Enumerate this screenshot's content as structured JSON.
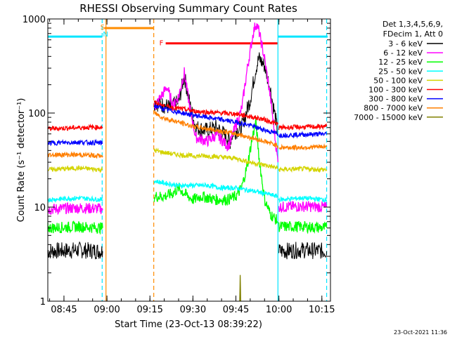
{
  "chart_data": {
    "type": "line",
    "title": "RHESSI Observing Summary Count Rates",
    "xlabel": "Start Time (23-Oct-13 08:39:22)",
    "ylabel": "Count Rate (s⁻¹ detector⁻¹)",
    "y_scale": "log",
    "ylim": [
      1,
      1000
    ],
    "xlim": [
      "08:39:22",
      "10:18:00"
    ],
    "x_ticks": [
      "08:45",
      "09:00",
      "09:15",
      "09:30",
      "09:45",
      "10:00",
      "10:15"
    ],
    "y_ticks": [
      "1",
      "10",
      "100",
      "1000"
    ],
    "grid": false,
    "legend_position": "right",
    "legend_header": [
      "Det 1,3,4,5,6,9,",
      "FDecim 1, Att 0"
    ],
    "timestamp": "23-Oct-2021 11:36",
    "annotations": [
      {
        "text": "S",
        "color": "#ff8c00",
        "time": "08:58:30"
      },
      {
        "text": "N",
        "color": "#00e5ff",
        "time": "08:59:30"
      },
      {
        "text": "F",
        "color": "#ff0000",
        "time": "09:19:00"
      }
    ],
    "bars": [
      {
        "name": "saa",
        "color": "#ff8c00",
        "from": "08:59:10",
        "to": "09:16:20",
        "y": 800
      },
      {
        "name": "night-left",
        "color": "#00e5ff",
        "from": "08:39:22",
        "to": "08:58:20",
        "y": 650
      },
      {
        "name": "night-right",
        "color": "#00e5ff",
        "from": "09:59:40",
        "to": "10:17:00",
        "y": 650
      },
      {
        "name": "flare",
        "color": "#ff0000",
        "from": "09:20:30",
        "to": "09:59:30",
        "y": 550
      }
    ],
    "vertical_lines": [
      {
        "time": "08:58:20",
        "color": "#00e5ff",
        "style": "dashed"
      },
      {
        "time": "08:59:40",
        "color": "#ff8c00",
        "style": "solid"
      },
      {
        "time": "09:16:20",
        "color": "#ff8c00",
        "style": "dashed"
      },
      {
        "time": "09:59:40",
        "color": "#00e5ff",
        "style": "solid"
      },
      {
        "time": "10:16:40",
        "color": "#00e5ff",
        "style": "dashed"
      }
    ],
    "series": [
      {
        "name": "3 - 6 keV",
        "color": "#000000",
        "segments": [
          [
            [
              "08:39:22",
              3.4
            ],
            [
              "08:50",
              3.5
            ],
            [
              "08:58:30",
              3.4
            ]
          ],
          [
            [
              "09:16:30",
              130
            ],
            [
              "09:22",
              115
            ],
            [
              "09:25",
              130
            ],
            [
              "09:27",
              250
            ],
            [
              "09:29",
              120
            ],
            [
              "09:31",
              70
            ],
            [
              "09:35",
              65
            ],
            [
              "09:38",
              70
            ],
            [
              "09:40",
              63
            ],
            [
              "09:42",
              55
            ],
            [
              "09:43",
              50
            ],
            [
              "09:44",
              62
            ],
            [
              "09:47",
              70
            ],
            [
              "09:50",
              140
            ],
            [
              "09:52",
              300
            ],
            [
              "09:53",
              380
            ],
            [
              "09:55",
              320
            ],
            [
              "09:57",
              180
            ],
            [
              "09:58:30",
              100
            ],
            [
              "09:59:40",
              60
            ]
          ],
          [
            [
              "10:00",
              3.4
            ],
            [
              "10:08",
              3.5
            ],
            [
              "10:16:40",
              3.4
            ]
          ]
        ]
      },
      {
        "name": "6 - 12 keV",
        "color": "#ff00ff",
        "segments": [
          [
            [
              "08:39:22",
              9.5
            ],
            [
              "08:50",
              9.8
            ],
            [
              "08:58:30",
              9.6
            ]
          ],
          [
            [
              "09:16:30",
              115
            ],
            [
              "09:21",
              190
            ],
            [
              "09:23",
              120
            ],
            [
              "09:25",
              150
            ],
            [
              "09:27",
              270
            ],
            [
              "09:29",
              110
            ],
            [
              "09:31",
              55
            ],
            [
              "09:35",
              50
            ],
            [
              "09:38",
              58
            ],
            [
              "09:40",
              52
            ],
            [
              "09:42",
              45
            ],
            [
              "09:43",
              48
            ],
            [
              "09:44",
              60
            ],
            [
              "09:47",
              110
            ],
            [
              "09:49",
              300
            ],
            [
              "09:51",
              700
            ],
            [
              "09:52",
              900
            ],
            [
              "09:53",
              750
            ],
            [
              "09:55",
              380
            ],
            [
              "09:57",
              150
            ],
            [
              "09:58:30",
              60
            ],
            [
              "09:59:40",
              30
            ]
          ],
          [
            [
              "10:00",
              10
            ],
            [
              "10:08",
              10.2
            ],
            [
              "10:16:40",
              10
            ]
          ]
        ]
      },
      {
        "name": "12 - 25 keV",
        "color": "#00ff00",
        "segments": [
          [
            [
              "08:39:22",
              6.0
            ],
            [
              "08:50",
              6.2
            ],
            [
              "08:58:30",
              6.0
            ]
          ],
          [
            [
              "09:16:30",
              13
            ],
            [
              "09:20",
              13
            ],
            [
              "09:23",
              14
            ],
            [
              "09:25",
              16
            ],
            [
              "09:27",
              14
            ],
            [
              "09:30",
              12
            ],
            [
              "09:33",
              13
            ],
            [
              "09:38",
              12
            ],
            [
              "09:42",
              12
            ],
            [
              "09:45",
              13
            ],
            [
              "09:47",
              16
            ],
            [
              "09:49",
              28
            ],
            [
              "09:51",
              60
            ],
            [
              "09:52",
              80
            ],
            [
              "09:53",
              35
            ],
            [
              "09:55",
              12
            ],
            [
              "09:57",
              8.5
            ],
            [
              "09:59:40",
              7
            ]
          ],
          [
            [
              "10:00",
              6.2
            ],
            [
              "10:08",
              6.2
            ],
            [
              "10:16:40",
              6.0
            ]
          ]
        ]
      },
      {
        "name": "25 - 50 keV",
        "color": "#00ffff",
        "segments": [
          [
            [
              "08:39:22",
              12
            ],
            [
              "08:50",
              12.5
            ],
            [
              "08:58:30",
              12
            ]
          ],
          [
            [
              "09:16:30",
              19
            ],
            [
              "09:20",
              18
            ],
            [
              "09:25",
              17
            ],
            [
              "09:30",
              17
            ],
            [
              "09:35",
              17
            ],
            [
              "09:40",
              16
            ],
            [
              "09:45",
              16
            ],
            [
              "09:50",
              15
            ],
            [
              "09:55",
              14
            ],
            [
              "09:59:40",
              13
            ]
          ],
          [
            [
              "10:00",
              12
            ],
            [
              "10:08",
              12.5
            ],
            [
              "10:16:40",
              12
            ]
          ]
        ]
      },
      {
        "name": "50 - 100 keV",
        "color": "#d4d400",
        "segments": [
          [
            [
              "08:39:22",
              25
            ],
            [
              "08:50",
              26
            ],
            [
              "08:58:30",
              25
            ]
          ],
          [
            [
              "09:16:30",
              40
            ],
            [
              "09:20",
              38
            ],
            [
              "09:25",
              36
            ],
            [
              "09:30",
              35
            ],
            [
              "09:35",
              35
            ],
            [
              "09:40",
              34
            ],
            [
              "09:45",
              33
            ],
            [
              "09:50",
              30
            ],
            [
              "09:55",
              28
            ],
            [
              "09:59:40",
              26
            ]
          ],
          [
            [
              "10:00",
              25
            ],
            [
              "10:08",
              25.5
            ],
            [
              "10:16:40",
              25
            ]
          ]
        ]
      },
      {
        "name": "100 - 300 keV",
        "color": "#ff0000",
        "segments": [
          [
            [
              "08:39:22",
              68
            ],
            [
              "08:50",
              70
            ],
            [
              "08:58:30",
              71
            ]
          ],
          [
            [
              "09:16:30",
              130
            ],
            [
              "09:20",
              118
            ],
            [
              "09:25",
              112
            ],
            [
              "09:30",
              105
            ],
            [
              "09:35",
              102
            ],
            [
              "09:40",
              100
            ],
            [
              "09:45",
              98
            ],
            [
              "09:50",
              92
            ],
            [
              "09:55",
              85
            ],
            [
              "09:59:40",
              76
            ]
          ],
          [
            [
              "10:00",
              70
            ],
            [
              "10:08",
              71
            ],
            [
              "10:16:40",
              72
            ]
          ]
        ]
      },
      {
        "name": "300 - 800 keV",
        "color": "#0000ff",
        "segments": [
          [
            [
              "08:39:22",
              48
            ],
            [
              "08:50",
              49
            ],
            [
              "08:58:30",
              48
            ]
          ],
          [
            [
              "09:16:30",
              120
            ],
            [
              "09:20",
              110
            ],
            [
              "09:25",
              102
            ],
            [
              "09:30",
              95
            ],
            [
              "09:35",
              90
            ],
            [
              "09:40",
              85
            ],
            [
              "09:45",
              80
            ],
            [
              "09:50",
              74
            ],
            [
              "09:55",
              66
            ],
            [
              "09:59:40",
              60
            ]
          ],
          [
            [
              "10:00",
              58
            ],
            [
              "10:08",
              59
            ],
            [
              "10:16:40",
              60
            ]
          ]
        ]
      },
      {
        "name": "800 - 7000 keV",
        "color": "#ff7f00",
        "segments": [
          [
            [
              "08:39:22",
              36
            ],
            [
              "08:50",
              36
            ],
            [
              "08:58:30",
              35
            ]
          ],
          [
            [
              "09:16:30",
              100
            ],
            [
              "09:20",
              88
            ],
            [
              "09:25",
              80
            ],
            [
              "09:30",
              72
            ],
            [
              "09:35",
              68
            ],
            [
              "09:40",
              64
            ],
            [
              "09:45",
              60
            ],
            [
              "09:50",
              55
            ],
            [
              "09:55",
              50
            ],
            [
              "09:59:40",
              45
            ]
          ],
          [
            [
              "10:00",
              43
            ],
            [
              "10:08",
              43
            ],
            [
              "10:16:40",
              44
            ]
          ]
        ]
      },
      {
        "name": "7000 - 15000 keV",
        "color": "#808000",
        "segments": [
          [
            [
              "09:46:20",
              1.0
            ],
            [
              "09:46:30",
              1.9
            ],
            [
              "09:46:40",
              1.0
            ]
          ]
        ]
      }
    ]
  }
}
